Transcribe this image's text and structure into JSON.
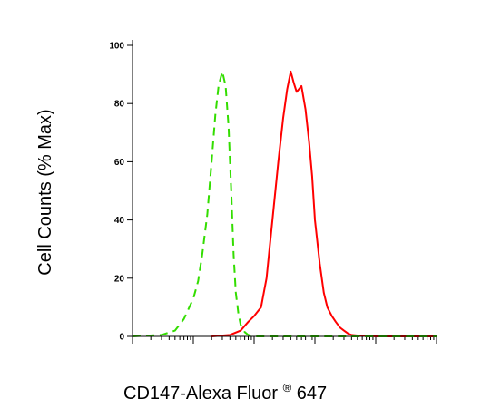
{
  "chart_data": {
    "type": "line",
    "ylabel": "Cell Counts (% Max)",
    "xlabel_main": "CD147-Alexa Fluor",
    "xlabel_sup": "®",
    "xlabel_tail": " 647",
    "x_scale": "log",
    "xlim": [
      1,
      100000
    ],
    "ylim": [
      0,
      100
    ],
    "yticks": [
      "0",
      "20",
      "40",
      "60",
      "80",
      "100"
    ],
    "ytick_values": [
      0,
      20,
      40,
      60,
      80,
      100
    ],
    "grid": false,
    "series": [
      {
        "color": "#ff0000",
        "line_style": "solid",
        "x": [
          20,
          40,
          60,
          80,
          100,
          130,
          160,
          200,
          250,
          300,
          350,
          400,
          450,
          500,
          600,
          700,
          800,
          900,
          1000,
          1200,
          1400,
          1600,
          1900,
          2200,
          2600,
          3000,
          3500,
          4000,
          5000,
          6000,
          8000,
          10000,
          100000
        ],
        "y": [
          0,
          0.5,
          2,
          5,
          7,
          10,
          20,
          40,
          60,
          75,
          85,
          91,
          87,
          84,
          86,
          78,
          67,
          55,
          40,
          25,
          15,
          10,
          7,
          5,
          3,
          2,
          1,
          0.5,
          0.3,
          0.2,
          0.1,
          0,
          0
        ]
      },
      {
        "color": "#33dd00",
        "line_style": "dashed",
        "x": [
          1,
          3,
          5,
          7,
          10,
          12,
          14,
          17,
          20,
          23,
          26,
          30,
          34,
          38,
          42,
          46,
          50,
          55,
          60,
          70,
          80,
          100,
          1000,
          10000,
          100000
        ],
        "y": [
          0,
          0.5,
          2,
          6,
          13,
          19,
          28,
          42,
          60,
          76,
          86,
          91,
          86,
          72,
          50,
          28,
          15,
          8,
          4,
          1.5,
          0.5,
          0,
          0,
          0,
          0
        ]
      }
    ]
  }
}
